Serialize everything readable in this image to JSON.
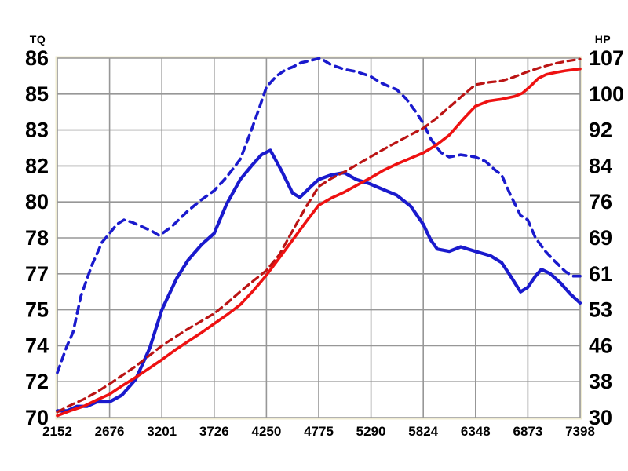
{
  "colors": {
    "background": "#ffffff",
    "grid": "#979797",
    "plot_border_light": "#f0ecd2",
    "torque_blue": "#1a1acd",
    "horsepower_red": "#ee1111",
    "horsepower_dark_red": "#bb1414",
    "text": "#000000"
  },
  "chart_data": {
    "type": "line",
    "title": "",
    "subtitle": "",
    "legend": "none",
    "grid": true,
    "x_axis": {
      "label": "",
      "min": 2152,
      "max": 7398,
      "ticks": [
        "2152",
        "2676",
        "3201",
        "3726",
        "4250",
        "4775",
        "5290",
        "5824",
        "6348",
        "6873",
        "7398"
      ]
    },
    "y_left": {
      "label": "TQ",
      "min": 70,
      "max": 86,
      "tick_labels": [
        "86",
        "85",
        "83",
        "82",
        "80",
        "78",
        "77",
        "75",
        "74",
        "72",
        "70"
      ]
    },
    "y_right": {
      "label": "HP",
      "min": 30,
      "max": 107,
      "tick_labels": [
        "107",
        "100",
        "92",
        "84",
        "76",
        "69",
        "61",
        "53",
        "46",
        "38",
        "30"
      ]
    },
    "series": [
      {
        "id": "torque-dashed",
        "axis": "left",
        "style": "dashed",
        "color": "#1a1acd",
        "width": 3.6,
        "dash": "9 7",
        "points": [
          [
            2152,
            72.0
          ],
          [
            2250,
            73.2
          ],
          [
            2310,
            73.8
          ],
          [
            2388,
            75.4
          ],
          [
            2500,
            76.8
          ],
          [
            2601,
            77.8
          ],
          [
            2676,
            78.2
          ],
          [
            2750,
            78.6
          ],
          [
            2821,
            78.8
          ],
          [
            2900,
            78.7
          ],
          [
            3000,
            78.5
          ],
          [
            3100,
            78.3
          ],
          [
            3175,
            78.1
          ],
          [
            3300,
            78.5
          ],
          [
            3463,
            79.2
          ],
          [
            3600,
            79.7
          ],
          [
            3726,
            80.1
          ],
          [
            3850,
            80.7
          ],
          [
            3988,
            81.5
          ],
          [
            4100,
            82.8
          ],
          [
            4180,
            83.8
          ],
          [
            4250,
            84.7
          ],
          [
            4350,
            85.2
          ],
          [
            4450,
            85.5
          ],
          [
            4512,
            85.6
          ],
          [
            4600,
            85.8
          ],
          [
            4700,
            85.9
          ],
          [
            4790,
            86.0
          ],
          [
            4900,
            85.7
          ],
          [
            5032,
            85.5
          ],
          [
            5150,
            85.4
          ],
          [
            5290,
            85.2
          ],
          [
            5400,
            84.9
          ],
          [
            5500,
            84.7
          ],
          [
            5557,
            84.6
          ],
          [
            5650,
            84.2
          ],
          [
            5750,
            83.6
          ],
          [
            5824,
            83.1
          ],
          [
            5900,
            82.4
          ],
          [
            6000,
            81.8
          ],
          [
            6086,
            81.6
          ],
          [
            6200,
            81.7
          ],
          [
            6348,
            81.6
          ],
          [
            6450,
            81.4
          ],
          [
            6550,
            81.0
          ],
          [
            6610,
            80.8
          ],
          [
            6700,
            79.9
          ],
          [
            6800,
            79.0
          ],
          [
            6873,
            78.8
          ],
          [
            6950,
            78.0
          ],
          [
            7050,
            77.4
          ],
          [
            7135,
            77.0
          ],
          [
            7250,
            76.5
          ],
          [
            7320,
            76.3
          ],
          [
            7398,
            76.3
          ]
        ]
      },
      {
        "id": "torque-solid",
        "axis": "left",
        "style": "solid",
        "color": "#1a1acd",
        "width": 4.2,
        "dash": "",
        "points": [
          [
            2152,
            70.3
          ],
          [
            2250,
            70.3
          ],
          [
            2350,
            70.5
          ],
          [
            2450,
            70.5
          ],
          [
            2550,
            70.7
          ],
          [
            2676,
            70.7
          ],
          [
            2800,
            71.0
          ],
          [
            2938,
            71.7
          ],
          [
            3080,
            73.1
          ],
          [
            3201,
            74.8
          ],
          [
            3350,
            76.2
          ],
          [
            3463,
            77.0
          ],
          [
            3600,
            77.7
          ],
          [
            3726,
            78.2
          ],
          [
            3850,
            79.5
          ],
          [
            3988,
            80.6
          ],
          [
            4100,
            81.2
          ],
          [
            4200,
            81.7
          ],
          [
            4290,
            81.9
          ],
          [
            4400,
            81.0
          ],
          [
            4512,
            80.0
          ],
          [
            4585,
            79.8
          ],
          [
            4700,
            80.3
          ],
          [
            4775,
            80.6
          ],
          [
            4900,
            80.8
          ],
          [
            5032,
            80.9
          ],
          [
            5150,
            80.6
          ],
          [
            5290,
            80.4
          ],
          [
            5450,
            80.1
          ],
          [
            5557,
            79.9
          ],
          [
            5700,
            79.4
          ],
          [
            5824,
            78.6
          ],
          [
            5900,
            77.9
          ],
          [
            5965,
            77.5
          ],
          [
            6086,
            77.4
          ],
          [
            6200,
            77.6
          ],
          [
            6348,
            77.4
          ],
          [
            6500,
            77.2
          ],
          [
            6610,
            76.9
          ],
          [
            6700,
            76.3
          ],
          [
            6800,
            75.6
          ],
          [
            6873,
            75.8
          ],
          [
            6950,
            76.3
          ],
          [
            7010,
            76.6
          ],
          [
            7100,
            76.4
          ],
          [
            7200,
            76.0
          ],
          [
            7300,
            75.5
          ],
          [
            7398,
            75.1
          ]
        ]
      },
      {
        "id": "horsepower-dashed",
        "axis": "right",
        "style": "dashed",
        "color": "#bb1414",
        "width": 3.2,
        "dash": "9 6",
        "points": [
          [
            2152,
            31.2
          ],
          [
            2300,
            32.8
          ],
          [
            2414,
            33.9
          ],
          [
            2550,
            35.5
          ],
          [
            2676,
            37.2
          ],
          [
            2800,
            39.0
          ],
          [
            2938,
            41.0
          ],
          [
            3070,
            43.2
          ],
          [
            3201,
            45.4
          ],
          [
            3330,
            47.2
          ],
          [
            3463,
            49.0
          ],
          [
            3600,
            50.7
          ],
          [
            3726,
            52.3
          ],
          [
            3860,
            54.6
          ],
          [
            3988,
            57.0
          ],
          [
            4120,
            59.3
          ],
          [
            4250,
            61.5
          ],
          [
            4380,
            64.9
          ],
          [
            4512,
            70.0
          ],
          [
            4650,
            75.2
          ],
          [
            4775,
            79.5
          ],
          [
            4900,
            81.2
          ],
          [
            5032,
            82.6
          ],
          [
            5160,
            84.2
          ],
          [
            5290,
            85.8
          ],
          [
            5420,
            87.4
          ],
          [
            5557,
            89.0
          ],
          [
            5690,
            90.5
          ],
          [
            5824,
            92.0
          ],
          [
            5950,
            94.0
          ],
          [
            6086,
            96.5
          ],
          [
            6220,
            99.0
          ],
          [
            6348,
            101.3
          ],
          [
            6480,
            101.8
          ],
          [
            6610,
            102.1
          ],
          [
            6740,
            103.0
          ],
          [
            6873,
            104.1
          ],
          [
            7000,
            105.0
          ],
          [
            7135,
            105.8
          ],
          [
            7250,
            106.3
          ],
          [
            7398,
            106.8
          ]
        ]
      },
      {
        "id": "horsepower-solid",
        "axis": "right",
        "style": "solid",
        "color": "#ee1111",
        "width": 3.6,
        "dash": "",
        "points": [
          [
            2152,
            30.4
          ],
          [
            2300,
            31.6
          ],
          [
            2414,
            32.4
          ],
          [
            2550,
            33.8
          ],
          [
            2676,
            35.0
          ],
          [
            2800,
            36.8
          ],
          [
            2938,
            38.6
          ],
          [
            3070,
            40.5
          ],
          [
            3201,
            42.4
          ],
          [
            3330,
            44.4
          ],
          [
            3463,
            46.3
          ],
          [
            3600,
            48.2
          ],
          [
            3726,
            50.1
          ],
          [
            3860,
            52.1
          ],
          [
            3988,
            54.2
          ],
          [
            4120,
            57.2
          ],
          [
            4250,
            60.5
          ],
          [
            4380,
            64.2
          ],
          [
            4512,
            68.0
          ],
          [
            4650,
            72.0
          ],
          [
            4775,
            75.5
          ],
          [
            4900,
            77.0
          ],
          [
            5032,
            78.3
          ],
          [
            5160,
            79.8
          ],
          [
            5290,
            81.3
          ],
          [
            5420,
            82.9
          ],
          [
            5557,
            84.3
          ],
          [
            5690,
            85.5
          ],
          [
            5824,
            86.7
          ],
          [
            5950,
            88.3
          ],
          [
            6086,
            90.5
          ],
          [
            6220,
            93.8
          ],
          [
            6348,
            96.7
          ],
          [
            6480,
            97.8
          ],
          [
            6610,
            98.2
          ],
          [
            6740,
            98.8
          ],
          [
            6820,
            99.5
          ],
          [
            6900,
            101.0
          ],
          [
            6980,
            102.7
          ],
          [
            7060,
            103.5
          ],
          [
            7150,
            103.9
          ],
          [
            7250,
            104.3
          ],
          [
            7398,
            104.7
          ]
        ]
      }
    ]
  }
}
